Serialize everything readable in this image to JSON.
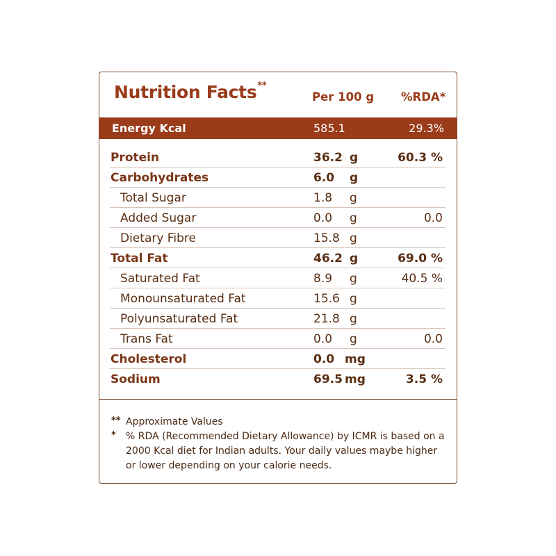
{
  "header": {
    "title": "Nutrition Facts",
    "title_mark": "**",
    "col_per": "Per 100 g",
    "col_rda": "%RDA*"
  },
  "energy": {
    "label": "Energy Kcal",
    "value": "585.1",
    "rda": "29.3%"
  },
  "rows": [
    {
      "name": "Protein",
      "amount": "36.2",
      "unit": "g",
      "rda": "60.3 %",
      "style": "bold"
    },
    {
      "name": "Carbohydrates",
      "amount": "6.0",
      "unit": "g",
      "rda": "",
      "style": "bold"
    },
    {
      "name": "Total Sugar",
      "amount": "1.8",
      "unit": "g",
      "rda": "",
      "style": "sub"
    },
    {
      "name": "Added Sugar",
      "amount": "0.0",
      "unit": "g",
      "rda": "0.0",
      "style": "sub"
    },
    {
      "name": "Dietary Fibre",
      "amount": "15.8",
      "unit": "g",
      "rda": "",
      "style": "sub"
    },
    {
      "name": "Total Fat",
      "amount": "46.2",
      "unit": "g",
      "rda": "69.0 %",
      "style": "bold"
    },
    {
      "name": "Saturated Fat",
      "amount": "8.9",
      "unit": "g",
      "rda": "40.5 %",
      "style": "sub"
    },
    {
      "name": "Monounsaturated Fat",
      "amount": "15.6",
      "unit": "g",
      "rda": "",
      "style": "sub"
    },
    {
      "name": "Polyunsaturated Fat",
      "amount": "21.8",
      "unit": "g",
      "rda": "",
      "style": "sub"
    },
    {
      "name": "Trans Fat",
      "amount": "0.0",
      "unit": "g",
      "rda": "0.0",
      "style": "sub"
    },
    {
      "name": "Cholesterol",
      "amount": "0.0",
      "unit": "mg",
      "rda": "",
      "style": "bold"
    },
    {
      "name": "Sodium",
      "amount": "69.5",
      "unit": "mg",
      "rda": "3.5 %",
      "style": "bold"
    }
  ],
  "notes": [
    {
      "mark": "**",
      "text": "Approximate Values"
    },
    {
      "mark": "*",
      "text": "% RDA (Recommended Dietary Allowance) by ICMR is based on a 2000 Kcal diet for Indian adults. Your daily values maybe higher or lower depending on your calorie needs."
    }
  ],
  "colors": {
    "accent": "#9a3b1a",
    "text": "#5a2e12",
    "border": "#7a4a2a"
  }
}
